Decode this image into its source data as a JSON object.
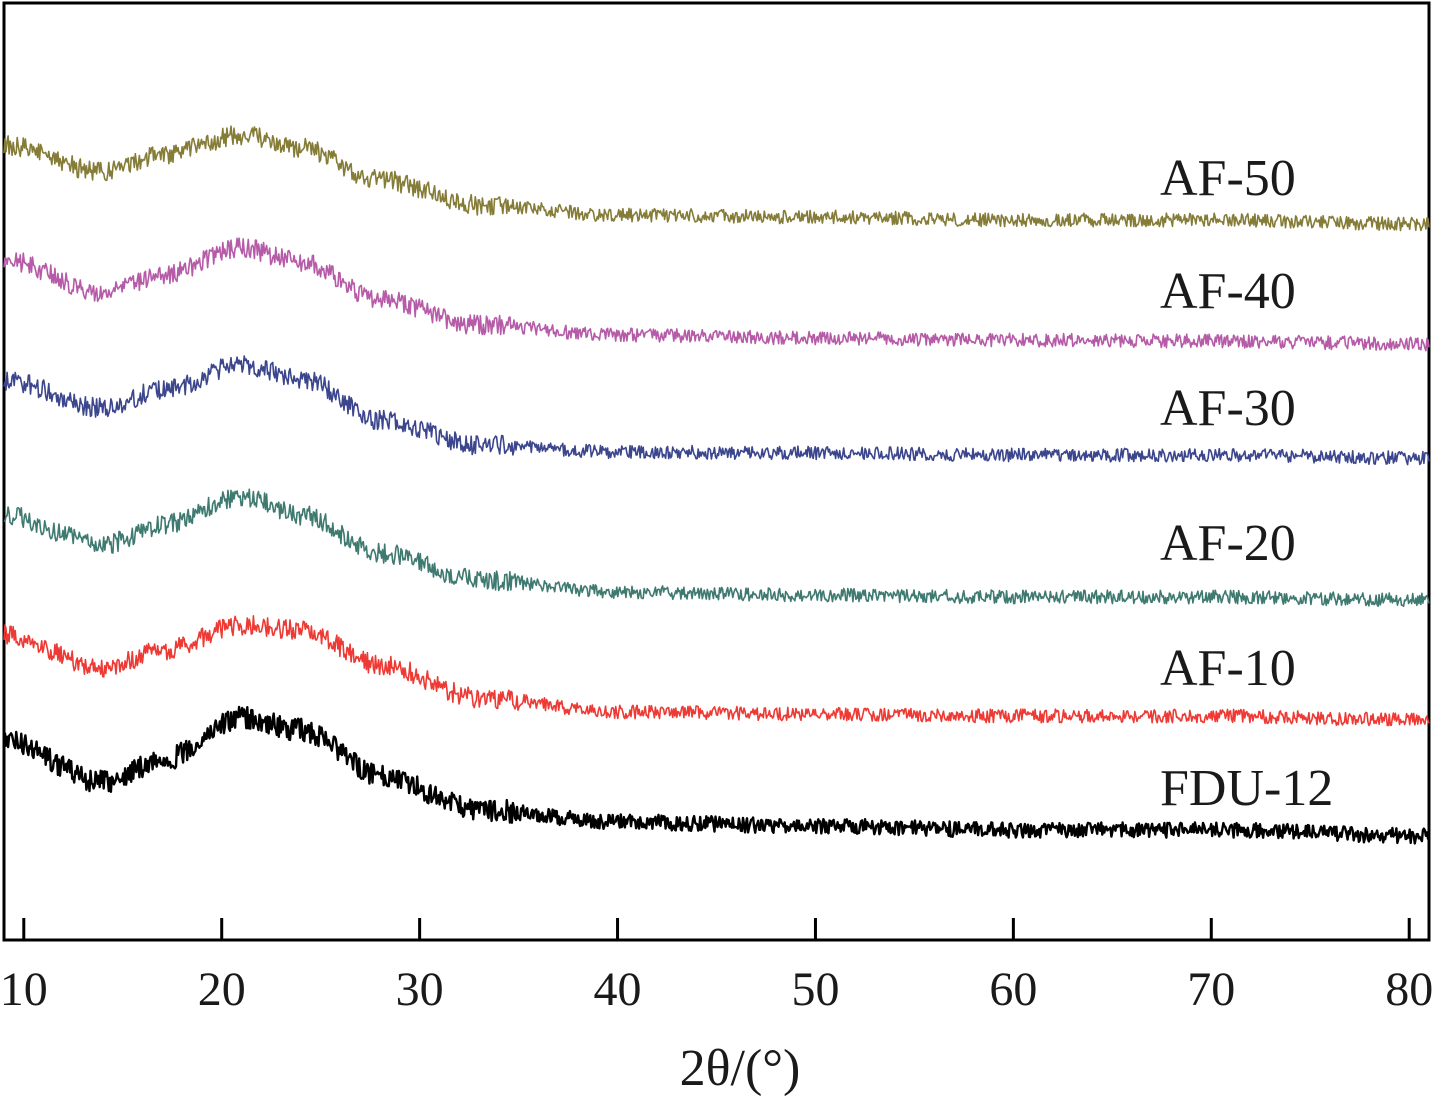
{
  "chart_data": {
    "type": "line",
    "title": "",
    "xlabel": "2θ/(°)",
    "ylabel": "",
    "xlim": [
      9,
      81
    ],
    "xticks": [
      10,
      20,
      30,
      40,
      50,
      60,
      70,
      80
    ],
    "xtick_labels": [
      "10",
      "20",
      "30",
      "40",
      "50",
      "60",
      "70",
      "80"
    ],
    "yaxis_visible": false,
    "grid": false,
    "legend": "inline labels at right",
    "series": [
      {
        "name": "FDU-12",
        "color": "#000000",
        "baseline": 835,
        "amplitude": 1.0,
        "key_points": [
          [
            9,
            740
          ],
          [
            14,
            782
          ],
          [
            17,
            760
          ],
          [
            21,
            718
          ],
          [
            24,
            730
          ],
          [
            28,
            775
          ],
          [
            33,
            810
          ],
          [
            40,
            822
          ],
          [
            50,
            826
          ],
          [
            60,
            830
          ],
          [
            70,
            830
          ],
          [
            81,
            836
          ]
        ],
        "noise": 9
      },
      {
        "name": "AF-10",
        "color": "#ee3a34",
        "baseline": 718,
        "amplitude": 1.0,
        "key_points": [
          [
            9,
            635
          ],
          [
            14,
            668
          ],
          [
            17,
            650
          ],
          [
            21,
            625
          ],
          [
            24,
            630
          ],
          [
            28,
            665
          ],
          [
            33,
            698
          ],
          [
            40,
            712
          ],
          [
            50,
            714
          ],
          [
            60,
            716
          ],
          [
            70,
            716
          ],
          [
            81,
            720
          ]
        ],
        "noise": 8
      },
      {
        "name": "AF-20",
        "color": "#3f7a71",
        "baseline": 598,
        "amplitude": 1.0,
        "key_points": [
          [
            9,
            515
          ],
          [
            14,
            545
          ],
          [
            17,
            525
          ],
          [
            21,
            497
          ],
          [
            24,
            515
          ],
          [
            28,
            553
          ],
          [
            33,
            580
          ],
          [
            40,
            592
          ],
          [
            50,
            595
          ],
          [
            60,
            597
          ],
          [
            70,
            597
          ],
          [
            81,
            600
          ]
        ],
        "noise": 8
      },
      {
        "name": "AF-30",
        "color": "#3c468d",
        "baseline": 455,
        "amplitude": 1.0,
        "key_points": [
          [
            9,
            380
          ],
          [
            14,
            408
          ],
          [
            17,
            390
          ],
          [
            21,
            365
          ],
          [
            24,
            378
          ],
          [
            28,
            420
          ],
          [
            33,
            445
          ],
          [
            40,
            452
          ],
          [
            50,
            453
          ],
          [
            60,
            455
          ],
          [
            70,
            455
          ],
          [
            81,
            458
          ]
        ],
        "noise": 8
      },
      {
        "name": "AF-40",
        "color": "#b55ba8",
        "baseline": 342,
        "amplitude": 1.0,
        "key_points": [
          [
            9,
            260
          ],
          [
            14,
            292
          ],
          [
            17,
            275
          ],
          [
            21,
            248
          ],
          [
            24,
            262
          ],
          [
            28,
            300
          ],
          [
            33,
            325
          ],
          [
            40,
            335
          ],
          [
            50,
            338
          ],
          [
            60,
            340
          ],
          [
            70,
            341
          ],
          [
            81,
            344
          ]
        ],
        "noise": 8
      },
      {
        "name": "AF-50",
        "color": "#857c38",
        "baseline": 222,
        "amplitude": 1.0,
        "key_points": [
          [
            9,
            145
          ],
          [
            14,
            172
          ],
          [
            17,
            155
          ],
          [
            21,
            135
          ],
          [
            24,
            148
          ],
          [
            28,
            180
          ],
          [
            33,
            205
          ],
          [
            40,
            215
          ],
          [
            50,
            217
          ],
          [
            60,
            220
          ],
          [
            70,
            220
          ],
          [
            81,
            224
          ]
        ],
        "noise": 8
      }
    ],
    "annotations": [
      {
        "text": "AF-50",
        "series": "AF-50"
      },
      {
        "text": "AF-40",
        "series": "AF-40"
      },
      {
        "text": "AF-30",
        "series": "AF-30"
      },
      {
        "text": "AF-20",
        "series": "AF-20"
      },
      {
        "text": "AF-10",
        "series": "AF-10"
      },
      {
        "text": "FDU-12",
        "series": "FDU-12"
      }
    ]
  }
}
